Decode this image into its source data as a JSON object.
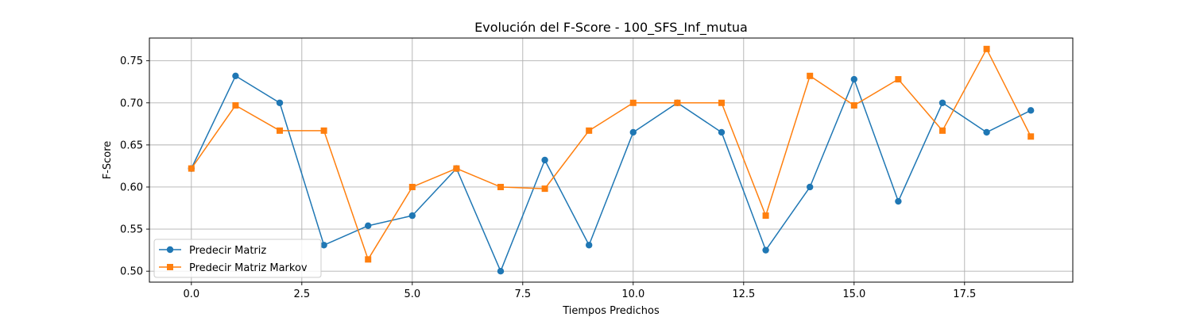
{
  "chart_data": {
    "type": "line",
    "title": "Evolución del F-Score - 100_SFS_Inf_mutua",
    "xlabel": "Tiempos Predichos",
    "ylabel": "F-Score",
    "xlim": [
      -0.95,
      19.95
    ],
    "ylim": [
      0.487,
      0.777
    ],
    "x_ticks": [
      0.0,
      2.5,
      5.0,
      7.5,
      10.0,
      12.5,
      15.0,
      17.5
    ],
    "x_tick_labels": [
      "0.0",
      "2.5",
      "5.0",
      "7.5",
      "10.0",
      "12.5",
      "15.0",
      "17.5"
    ],
    "y_ticks": [
      0.5,
      0.55,
      0.6,
      0.65,
      0.7,
      0.75
    ],
    "y_tick_labels": [
      "0.50",
      "0.55",
      "0.60",
      "0.65",
      "0.70",
      "0.75"
    ],
    "grid": true,
    "legend_position": "lower-left",
    "x": [
      0,
      1,
      2,
      3,
      4,
      5,
      6,
      7,
      8,
      9,
      10,
      11,
      12,
      13,
      14,
      15,
      16,
      17,
      18,
      19
    ],
    "series": [
      {
        "name": "Predecir Matriz",
        "color": "#1f77b4",
        "marker": "circle",
        "values": [
          0.622,
          0.732,
          0.7,
          0.531,
          0.554,
          0.566,
          0.622,
          0.5,
          0.632,
          0.531,
          0.665,
          0.7,
          0.665,
          0.525,
          0.6,
          0.728,
          0.583,
          0.7,
          0.665,
          0.691
        ]
      },
      {
        "name": "Predecir Matriz Markov",
        "color": "#ff7f0e",
        "marker": "square",
        "values": [
          0.622,
          0.697,
          0.667,
          0.667,
          0.514,
          0.6,
          0.622,
          0.6,
          0.598,
          0.667,
          0.7,
          0.7,
          0.7,
          0.566,
          0.732,
          0.697,
          0.728,
          0.667,
          0.764,
          0.66
        ]
      }
    ]
  }
}
